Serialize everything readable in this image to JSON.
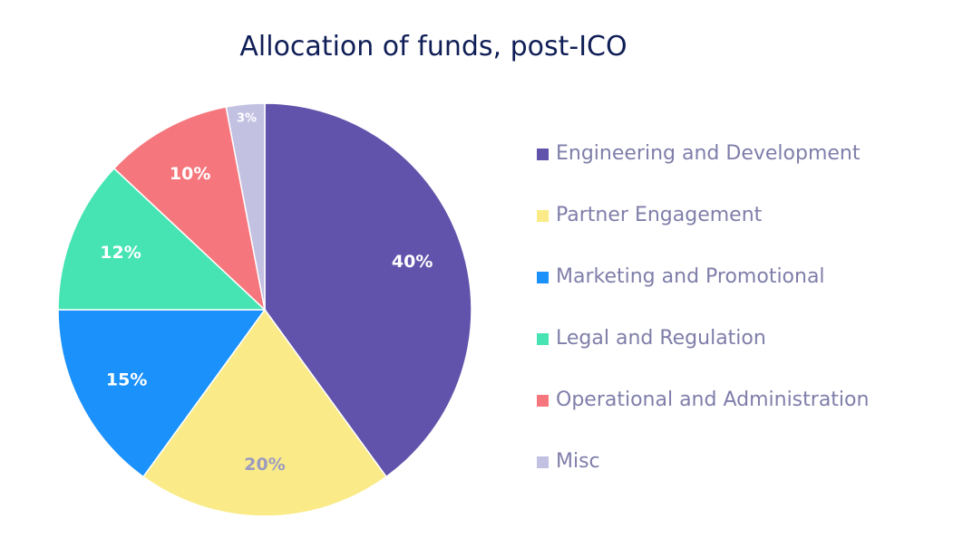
{
  "chart_data": {
    "type": "pie",
    "title": "Allocation of funds, post-ICO",
    "legend_position": "right",
    "slices": [
      {
        "label": "Engineering and Development",
        "value": 40,
        "display": "40%",
        "color": "#6153ab",
        "label_color": "#ffffff"
      },
      {
        "label": "Partner Engagement",
        "value": 20,
        "display": "20%",
        "color": "#faeb88",
        "label_color": "#9c9bc0"
      },
      {
        "label": "Marketing and Promotional",
        "value": 15,
        "display": "15%",
        "color": "#1b91fb",
        "label_color": "#ffffff"
      },
      {
        "label": "Legal and Regulation",
        "value": 12,
        "display": "12%",
        "color": "#45e4b2",
        "label_color": "#ffffff"
      },
      {
        "label": "Operational and Administration",
        "value": 10,
        "display": "10%",
        "color": "#f5777d",
        "label_color": "#ffffff"
      },
      {
        "label": "Misc",
        "value": 3,
        "display": "3%",
        "color": "#c3c1e2",
        "label_color": "#ffffff"
      }
    ]
  }
}
